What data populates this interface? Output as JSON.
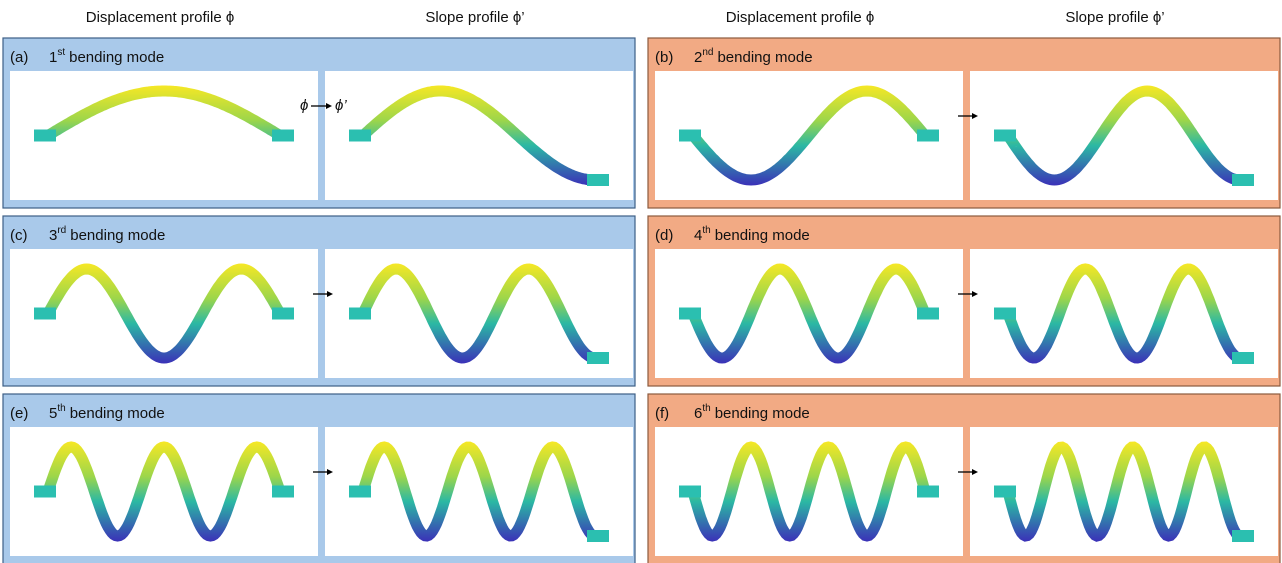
{
  "headers": [
    {
      "displacement": "Displacement profile ϕ",
      "slope": "Slope profile ϕ’"
    },
    {
      "displacement": "Displacement profile ϕ",
      "slope": "Slope profile ϕ’"
    }
  ],
  "annotation": {
    "from": "ϕ",
    "to": "ϕ’"
  },
  "panels": [
    {
      "label": "(a)",
      "number": "1",
      "suffix": "st",
      "title": "bending mode"
    },
    {
      "label": "(b)",
      "number": "2",
      "suffix": "nd",
      "title": "bending mode"
    },
    {
      "label": "(c)",
      "number": "3",
      "suffix": "rd",
      "title": "bending mode"
    },
    {
      "label": "(d)",
      "number": "4",
      "suffix": "th",
      "title": "bending mode"
    },
    {
      "label": "(e)",
      "number": "5",
      "suffix": "th",
      "title": "bending mode"
    },
    {
      "label": "(f)",
      "number": "6",
      "suffix": "th",
      "title": "bending mode"
    }
  ]
}
